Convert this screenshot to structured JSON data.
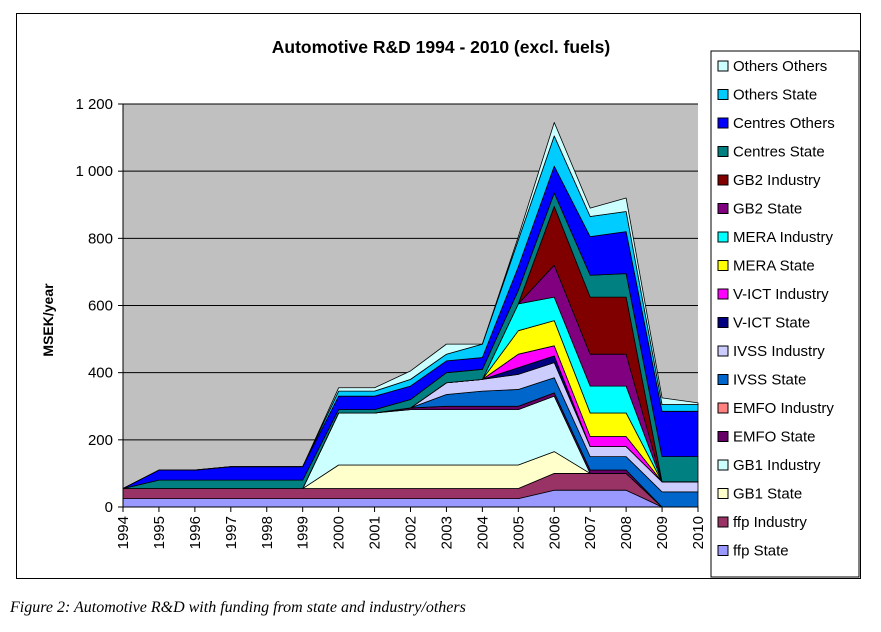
{
  "caption": "Figure 2: Automotive R&D with funding from state and industry/others",
  "chart_data": {
    "type": "area",
    "stacked": true,
    "title": "Automotive R&D 1994 - 2010 (excl. fuels)",
    "xlabel": "",
    "ylabel": "MSEK/year",
    "ylim": [
      0,
      1200
    ],
    "yticks": [
      0,
      200,
      400,
      600,
      800,
      1000,
      1200
    ],
    "ytick_labels": [
      "0",
      "200",
      "400",
      "600",
      "800",
      "1 000",
      "1 200"
    ],
    "grid": true,
    "legend_position": "right",
    "categories": [
      "1994",
      "1995",
      "1996",
      "1997",
      "1998",
      "1999",
      "2000",
      "2001",
      "2002",
      "2003",
      "2004",
      "2005",
      "2006",
      "2007",
      "2008",
      "2009",
      "2010"
    ],
    "series": [
      {
        "name": "ffp State",
        "color": "#9999ff",
        "values": [
          25,
          25,
          25,
          25,
          25,
          25,
          25,
          25,
          25,
          25,
          25,
          25,
          50,
          50,
          50,
          0,
          0
        ]
      },
      {
        "name": "ffp Industry",
        "color": "#993366",
        "values": [
          30,
          30,
          30,
          30,
          30,
          30,
          30,
          30,
          30,
          30,
          30,
          30,
          50,
          50,
          50,
          0,
          0
        ]
      },
      {
        "name": "GB1 State",
        "color": "#ffffcc",
        "values": [
          0,
          0,
          0,
          0,
          0,
          0,
          70,
          70,
          70,
          70,
          70,
          70,
          65,
          0,
          0,
          0,
          0
        ]
      },
      {
        "name": "GB1 Industry",
        "color": "#ccffff",
        "values": [
          0,
          0,
          0,
          0,
          0,
          0,
          155,
          155,
          165,
          165,
          165,
          165,
          165,
          0,
          0,
          0,
          0
        ]
      },
      {
        "name": "EMFO State",
        "color": "#660066",
        "values": [
          0,
          0,
          0,
          0,
          0,
          0,
          0,
          0,
          5,
          10,
          10,
          10,
          10,
          10,
          10,
          0,
          0
        ]
      },
      {
        "name": "EMFO Industry",
        "color": "#ff8080",
        "values": [
          0,
          0,
          0,
          0,
          0,
          0,
          0,
          0,
          0,
          0,
          0,
          0,
          0,
          0,
          0,
          0,
          0
        ]
      },
      {
        "name": "IVSS State",
        "color": "#0066cc",
        "values": [
          0,
          0,
          0,
          0,
          0,
          0,
          0,
          0,
          0,
          35,
          45,
          50,
          45,
          40,
          40,
          45,
          45
        ]
      },
      {
        "name": "IVSS Industry",
        "color": "#ccccff",
        "values": [
          0,
          0,
          0,
          0,
          0,
          0,
          0,
          0,
          0,
          35,
          35,
          45,
          45,
          30,
          30,
          30,
          30
        ]
      },
      {
        "name": "V-ICT State",
        "color": "#000080",
        "values": [
          0,
          0,
          0,
          0,
          0,
          0,
          0,
          0,
          0,
          0,
          0,
          20,
          20,
          0,
          0,
          0,
          0
        ]
      },
      {
        "name": "V-ICT Industry",
        "color": "#ff00ff",
        "values": [
          0,
          0,
          0,
          0,
          0,
          0,
          0,
          0,
          0,
          0,
          0,
          40,
          30,
          30,
          30,
          0,
          0
        ]
      },
      {
        "name": "MERA State",
        "color": "#ffff00",
        "values": [
          0,
          0,
          0,
          0,
          0,
          0,
          0,
          0,
          0,
          0,
          0,
          70,
          75,
          70,
          70,
          0,
          0
        ]
      },
      {
        "name": "MERA Industry",
        "color": "#00ffff",
        "values": [
          0,
          0,
          0,
          0,
          0,
          0,
          0,
          0,
          0,
          0,
          0,
          80,
          70,
          80,
          80,
          0,
          0
        ]
      },
      {
        "name": "GB2 State",
        "color": "#800080",
        "values": [
          0,
          0,
          0,
          0,
          0,
          0,
          0,
          0,
          0,
          0,
          0,
          0,
          95,
          95,
          95,
          0,
          0
        ]
      },
      {
        "name": "GB2 Industry",
        "color": "#800000",
        "values": [
          0,
          0,
          0,
          0,
          0,
          0,
          0,
          0,
          0,
          0,
          0,
          0,
          175,
          170,
          170,
          0,
          0
        ]
      },
      {
        "name": "Centres State",
        "color": "#008080",
        "values": [
          0,
          25,
          25,
          25,
          25,
          25,
          10,
          10,
          25,
          30,
          30,
          40,
          40,
          65,
          70,
          75,
          75
        ]
      },
      {
        "name": "Centres Others",
        "color": "#0000ff",
        "values": [
          0,
          30,
          30,
          40,
          40,
          40,
          40,
          40,
          40,
          35,
          35,
          70,
          80,
          115,
          125,
          135,
          135
        ]
      },
      {
        "name": "Others State",
        "color": "#00ccff",
        "values": [
          0,
          0,
          0,
          0,
          0,
          0,
          15,
          15,
          20,
          20,
          40,
          80,
          90,
          60,
          60,
          20,
          20
        ]
      },
      {
        "name": "Others Others",
        "color": "#ccffff",
        "values": [
          0,
          0,
          0,
          0,
          0,
          0,
          10,
          10,
          25,
          30,
          0,
          10,
          40,
          25,
          40,
          20,
          5
        ]
      }
    ]
  }
}
